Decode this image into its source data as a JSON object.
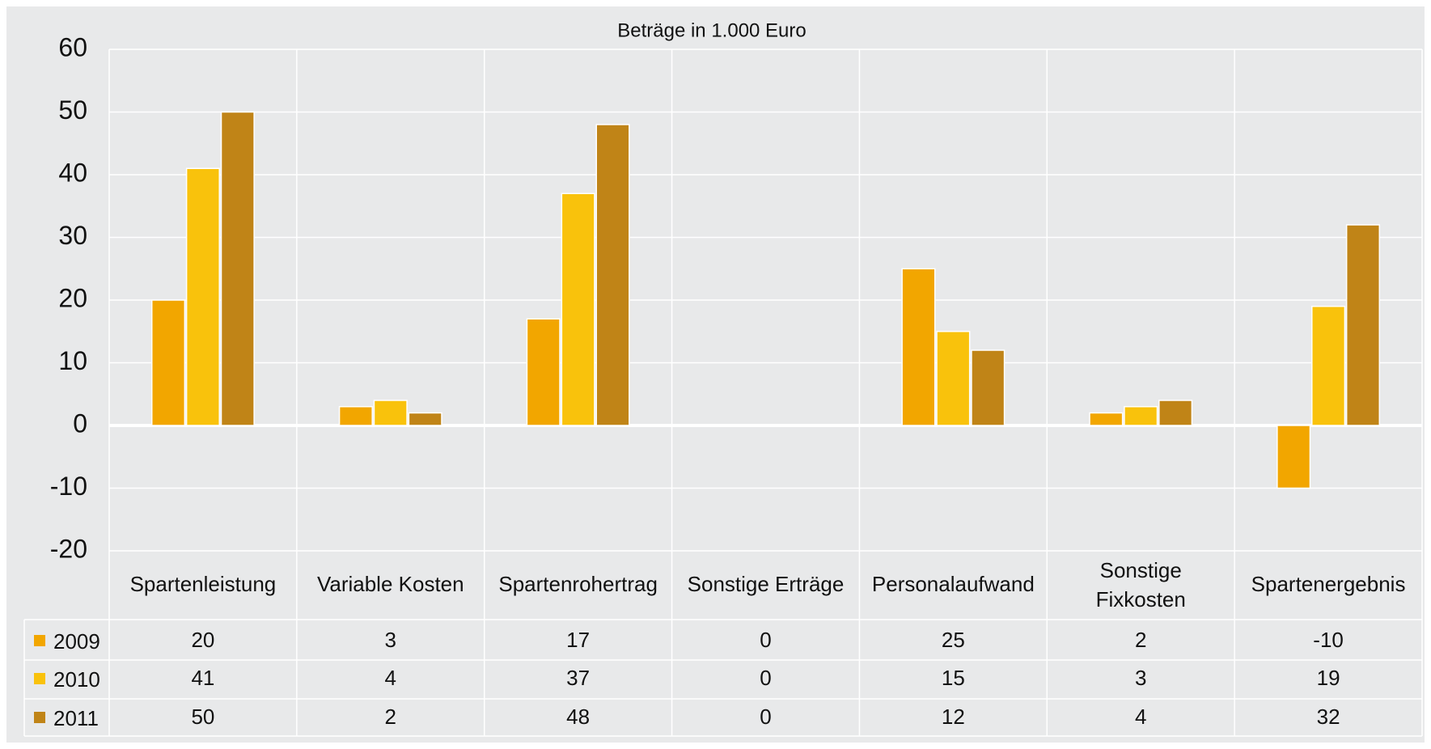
{
  "chart_data": {
    "type": "bar",
    "title": "Beträge in 1.000 Euro",
    "categories": [
      "Spartenleistung",
      "Variable Kosten",
      "Spartenrohertrag",
      "Sonstige Erträge",
      "Personalaufwand",
      "Sonstige Fixkosten",
      "Spartenergebnis"
    ],
    "series": [
      {
        "name": "2009",
        "color": "#f2a600",
        "values": [
          20,
          3,
          17,
          0,
          25,
          2,
          -10
        ]
      },
      {
        "name": "2010",
        "color": "#f9c20c",
        "values": [
          41,
          4,
          37,
          0,
          15,
          3,
          19
        ]
      },
      {
        "name": "2011",
        "color": "#c08417",
        "values": [
          50,
          2,
          48,
          0,
          12,
          4,
          32
        ]
      }
    ],
    "ylim": [
      -20,
      60
    ],
    "yticks": [
      -20,
      -10,
      0,
      10,
      20,
      30,
      40,
      50,
      60
    ],
    "grid": true
  }
}
